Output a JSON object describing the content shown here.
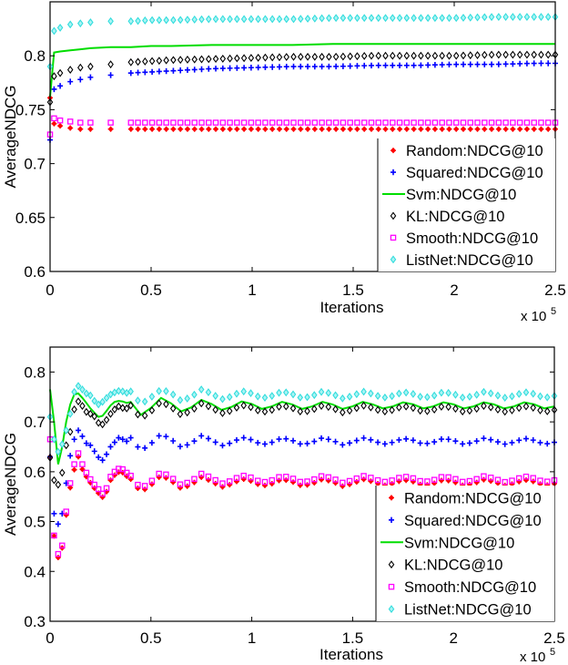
{
  "chart_data": [
    {
      "type": "line",
      "xlabel": "Iterations",
      "ylabel": "AverageNDCG",
      "x_multiplier_label": "x 10",
      "x_multiplier_exponent": "5",
      "xlim": [
        0,
        2.5
      ],
      "ylim": [
        0.6,
        0.85
      ],
      "xticks": [
        "0",
        "0.5",
        "1",
        "1.5",
        "2",
        "2.5"
      ],
      "xtick_values": [
        0,
        0.5,
        1,
        1.5,
        2,
        2.5
      ],
      "yticks": [
        "0.6",
        "0.65",
        "0.7",
        "0.75",
        "0.8"
      ],
      "ytick_values": [
        0.6,
        0.65,
        0.7,
        0.75,
        0.8
      ],
      "grid": false,
      "legend_position": "bottom-right",
      "x": [
        0,
        0.02,
        0.05,
        0.1,
        0.15,
        0.2,
        0.3,
        0.4,
        0.5,
        0.6,
        0.8,
        1.0,
        1.2,
        1.4,
        1.6,
        1.8,
        2.0,
        2.2,
        2.4,
        2.5
      ],
      "series": [
        {
          "name": "Random:NDCG@10",
          "color": "#ff0000",
          "marker": "star",
          "values": [
            0.761,
            0.737,
            0.735,
            0.733,
            0.732,
            0.732,
            0.732,
            0.732,
            0.732,
            0.732,
            0.732,
            0.732,
            0.732,
            0.732,
            0.732,
            0.732,
            0.732,
            0.732,
            0.732,
            0.732
          ]
        },
        {
          "name": "Squared:NDCG@10",
          "color": "#0000ff",
          "marker": "plus",
          "values": [
            0.722,
            0.769,
            0.772,
            0.776,
            0.778,
            0.78,
            0.782,
            0.784,
            0.785,
            0.786,
            0.788,
            0.789,
            0.79,
            0.79,
            0.791,
            0.791,
            0.792,
            0.792,
            0.793,
            0.793
          ]
        },
        {
          "name": "Svm:NDCG@10",
          "color": "#00dd00",
          "marker": "line",
          "values": [
            0.762,
            0.803,
            0.804,
            0.805,
            0.806,
            0.807,
            0.808,
            0.808,
            0.809,
            0.809,
            0.81,
            0.81,
            0.81,
            0.811,
            0.811,
            0.811,
            0.811,
            0.811,
            0.811,
            0.811
          ]
        },
        {
          "name": "KL:NDCG@10",
          "color": "#000000",
          "marker": "diamond",
          "values": [
            0.757,
            0.781,
            0.784,
            0.787,
            0.789,
            0.79,
            0.792,
            0.794,
            0.795,
            0.796,
            0.797,
            0.798,
            0.799,
            0.799,
            0.8,
            0.8,
            0.8,
            0.801,
            0.801,
            0.801
          ]
        },
        {
          "name": "Smooth:NDCG@10",
          "color": "#ff00ff",
          "marker": "square",
          "values": [
            0.727,
            0.742,
            0.74,
            0.739,
            0.738,
            0.738,
            0.738,
            0.738,
            0.738,
            0.738,
            0.738,
            0.738,
            0.738,
            0.738,
            0.738,
            0.738,
            0.738,
            0.738,
            0.738,
            0.738
          ]
        },
        {
          "name": "ListNet:NDCG@10",
          "color": "#33dddd",
          "marker": "diamond-filled",
          "values": [
            0.79,
            0.823,
            0.826,
            0.829,
            0.83,
            0.831,
            0.832,
            0.832,
            0.833,
            0.833,
            0.834,
            0.834,
            0.834,
            0.835,
            0.835,
            0.835,
            0.835,
            0.836,
            0.836,
            0.836
          ]
        }
      ]
    },
    {
      "type": "line",
      "xlabel": "Iterations",
      "ylabel": "AverageNDCG",
      "x_multiplier_label": "x 10",
      "x_multiplier_exponent": "5",
      "xlim": [
        0,
        2.5
      ],
      "ylim": [
        0.3,
        0.85
      ],
      "xticks": [
        "0",
        "0.5",
        "1",
        "1.5",
        "2",
        "2.5"
      ],
      "xtick_values": [
        0,
        0.5,
        1,
        1.5,
        2,
        2.5
      ],
      "yticks": [
        "0.3",
        "0.4",
        "0.5",
        "0.6",
        "0.7",
        "0.8"
      ],
      "ytick_values": [
        0.3,
        0.4,
        0.5,
        0.6,
        0.7,
        0.8
      ],
      "grid": false,
      "legend_position": "bottom-right",
      "x": [
        0,
        0.02,
        0.04,
        0.06,
        0.08,
        0.1,
        0.12,
        0.14,
        0.16,
        0.18,
        0.2,
        0.22,
        0.24,
        0.26,
        0.28,
        0.3,
        0.32,
        0.34,
        0.36,
        0.38,
        0.4,
        0.45,
        0.5,
        0.55,
        0.6,
        0.65,
        0.7,
        0.75,
        0.8,
        0.85,
        0.9,
        0.95,
        1.0,
        1.05,
        1.1,
        1.15,
        1.2,
        1.25,
        1.3,
        1.35,
        1.4,
        1.45,
        1.5,
        1.55,
        1.6,
        1.65,
        1.7,
        1.75,
        1.8,
        1.85,
        1.9,
        1.95,
        2.0,
        2.05,
        2.1,
        2.15,
        2.2,
        2.25,
        2.3,
        2.35,
        2.4,
        2.45,
        2.5
      ],
      "series": [
        {
          "name": "Random:NDCG@10",
          "color": "#ff0000",
          "marker": "star",
          "values": [
            0.63,
            0.471,
            0.428,
            0.447,
            0.513,
            0.568,
            0.604,
            0.63,
            0.605,
            0.59,
            0.578,
            0.567,
            0.557,
            0.549,
            0.56,
            0.583,
            0.593,
            0.599,
            0.598,
            0.591,
            0.585,
            0.559,
            0.573,
            0.593,
            0.582,
            0.566,
            0.574,
            0.589,
            0.581,
            0.569,
            0.575,
            0.586,
            0.581,
            0.571,
            0.576,
            0.585,
            0.58,
            0.571,
            0.576,
            0.585,
            0.58,
            0.571,
            0.576,
            0.585,
            0.58,
            0.572,
            0.576,
            0.584,
            0.58,
            0.572,
            0.576,
            0.584,
            0.58,
            0.572,
            0.576,
            0.584,
            0.58,
            0.572,
            0.576,
            0.584,
            0.58,
            0.572,
            0.576
          ]
        },
        {
          "name": "Squared:NDCG@10",
          "color": "#0000ff",
          "marker": "plus",
          "values": [
            0.63,
            0.516,
            0.495,
            0.516,
            0.577,
            0.632,
            0.665,
            0.683,
            0.671,
            0.657,
            0.653,
            0.641,
            0.629,
            0.623,
            0.635,
            0.65,
            0.659,
            0.668,
            0.665,
            0.661,
            0.668,
            0.642,
            0.656,
            0.676,
            0.665,
            0.649,
            0.657,
            0.672,
            0.664,
            0.652,
            0.658,
            0.669,
            0.664,
            0.654,
            0.659,
            0.668,
            0.663,
            0.654,
            0.659,
            0.668,
            0.663,
            0.654,
            0.659,
            0.668,
            0.663,
            0.655,
            0.659,
            0.667,
            0.663,
            0.655,
            0.659,
            0.667,
            0.663,
            0.655,
            0.659,
            0.667,
            0.663,
            0.655,
            0.659,
            0.667,
            0.663,
            0.655,
            0.659
          ]
        },
        {
          "name": "Svm:NDCG@10",
          "color": "#00dd00",
          "marker": "line",
          "values": [
            0.765,
            0.7,
            0.615,
            0.65,
            0.7,
            0.735,
            0.755,
            0.757,
            0.748,
            0.738,
            0.727,
            0.718,
            0.71,
            0.712,
            0.722,
            0.733,
            0.74,
            0.742,
            0.741,
            0.738,
            0.74,
            0.714,
            0.728,
            0.748,
            0.737,
            0.721,
            0.729,
            0.744,
            0.736,
            0.724,
            0.73,
            0.741,
            0.736,
            0.726,
            0.731,
            0.74,
            0.735,
            0.726,
            0.731,
            0.74,
            0.735,
            0.726,
            0.731,
            0.74,
            0.735,
            0.727,
            0.731,
            0.739,
            0.735,
            0.727,
            0.731,
            0.739,
            0.735,
            0.727,
            0.731,
            0.739,
            0.735,
            0.727,
            0.731,
            0.739,
            0.735,
            0.727,
            0.731
          ]
        },
        {
          "name": "KL:NDCG@10",
          "color": "#000000",
          "marker": "diamond",
          "values": [
            0.628,
            0.583,
            0.574,
            0.598,
            0.653,
            0.68,
            0.725,
            0.741,
            0.732,
            0.72,
            0.716,
            0.711,
            0.698,
            0.695,
            0.704,
            0.716,
            0.725,
            0.731,
            0.728,
            0.727,
            0.733,
            0.707,
            0.721,
            0.741,
            0.73,
            0.714,
            0.722,
            0.737,
            0.729,
            0.717,
            0.723,
            0.734,
            0.729,
            0.719,
            0.724,
            0.733,
            0.728,
            0.719,
            0.724,
            0.733,
            0.728,
            0.719,
            0.724,
            0.733,
            0.728,
            0.72,
            0.724,
            0.732,
            0.728,
            0.72,
            0.724,
            0.732,
            0.728,
            0.72,
            0.724,
            0.732,
            0.728,
            0.72,
            0.724,
            0.732,
            0.728,
            0.72,
            0.724
          ]
        },
        {
          "name": "Smooth:NDCG@10",
          "color": "#ff00ff",
          "marker": "square",
          "values": [
            0.665,
            0.472,
            0.435,
            0.452,
            0.52,
            0.577,
            0.615,
            0.637,
            0.615,
            0.598,
            0.585,
            0.574,
            0.565,
            0.556,
            0.567,
            0.59,
            0.6,
            0.606,
            0.605,
            0.598,
            0.592,
            0.566,
            0.58,
            0.6,
            0.589,
            0.573,
            0.581,
            0.596,
            0.588,
            0.576,
            0.582,
            0.593,
            0.588,
            0.578,
            0.583,
            0.592,
            0.587,
            0.578,
            0.583,
            0.592,
            0.587,
            0.578,
            0.583,
            0.592,
            0.587,
            0.579,
            0.583,
            0.591,
            0.587,
            0.579,
            0.583,
            0.591,
            0.587,
            0.579,
            0.583,
            0.591,
            0.587,
            0.579,
            0.583,
            0.591,
            0.587,
            0.579,
            0.583
          ]
        },
        {
          "name": "ListNet:NDCG@10",
          "color": "#33dddd",
          "marker": "diamond-filled",
          "values": [
            0.71,
            0.665,
            0.64,
            0.655,
            0.683,
            0.716,
            0.76,
            0.772,
            0.765,
            0.757,
            0.753,
            0.742,
            0.735,
            0.74,
            0.748,
            0.755,
            0.759,
            0.762,
            0.761,
            0.758,
            0.761,
            0.735,
            0.749,
            0.765,
            0.758,
            0.742,
            0.75,
            0.765,
            0.757,
            0.745,
            0.751,
            0.762,
            0.757,
            0.747,
            0.752,
            0.761,
            0.756,
            0.747,
            0.752,
            0.761,
            0.756,
            0.747,
            0.752,
            0.761,
            0.756,
            0.748,
            0.752,
            0.76,
            0.756,
            0.748,
            0.752,
            0.76,
            0.756,
            0.748,
            0.752,
            0.76,
            0.756,
            0.748,
            0.752,
            0.76,
            0.756,
            0.748,
            0.752
          ]
        }
      ]
    }
  ]
}
